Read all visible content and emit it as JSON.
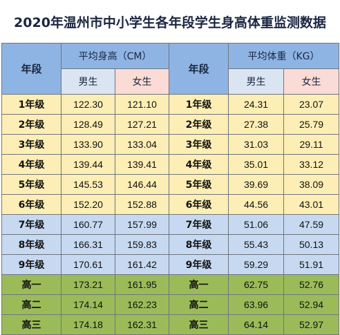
{
  "title": "2020年温州市中小学生各年段学生身高体重监测数据",
  "header": {
    "grade_label": "年段",
    "height_group": "平均身高（CM）",
    "weight_group": "平均体重（KG）",
    "male": "男生",
    "female": "女生"
  },
  "rows": [
    {
      "grade": "1年级",
      "height_male": "122.30",
      "height_female": "121.10",
      "weight_male": "24.31",
      "weight_female": "23.07"
    },
    {
      "grade": "2年级",
      "height_male": "128.49",
      "height_female": "127.21",
      "weight_male": "27.38",
      "weight_female": "25.79"
    },
    {
      "grade": "3年级",
      "height_male": "133.90",
      "height_female": "133.04",
      "weight_male": "31.03",
      "weight_female": "29.11"
    },
    {
      "grade": "4年级",
      "height_male": "139.44",
      "height_female": "139.41",
      "weight_male": "35.01",
      "weight_female": "33.12"
    },
    {
      "grade": "5年级",
      "height_male": "145.53",
      "height_female": "146.44",
      "weight_male": "39.69",
      "weight_female": "38.09"
    },
    {
      "grade": "6年级",
      "height_male": "152.20",
      "height_female": "152.88",
      "weight_male": "44.56",
      "weight_female": "43.01"
    },
    {
      "grade": "7年级",
      "height_male": "160.77",
      "height_female": "157.99",
      "weight_male": "51.06",
      "weight_female": "47.59"
    },
    {
      "grade": "8年级",
      "height_male": "166.31",
      "height_female": "159.83",
      "weight_male": "55.43",
      "weight_female": "50.13"
    },
    {
      "grade": "9年级",
      "height_male": "170.61",
      "height_female": "161.42",
      "weight_male": "59.29",
      "weight_female": "51.91"
    },
    {
      "grade": "高一",
      "height_male": "173.21",
      "height_female": "161.95",
      "weight_male": "62.75",
      "weight_female": "52.76"
    },
    {
      "grade": "高二",
      "height_male": "174.14",
      "height_female": "162.23",
      "weight_male": "63.96",
      "weight_female": "52.94"
    },
    {
      "grade": "高三",
      "height_male": "174.18",
      "height_female": "162.31",
      "weight_male": "64.14",
      "weight_female": "52.97"
    }
  ],
  "colors": {
    "header": "#8eb4e3",
    "male_header": "#dbe5f1",
    "female_header": "#fadbd5",
    "primary_rows": "#fdeeb5",
    "junior_rows": "#c6d9f1",
    "senior_rows": "#9bbb59"
  }
}
